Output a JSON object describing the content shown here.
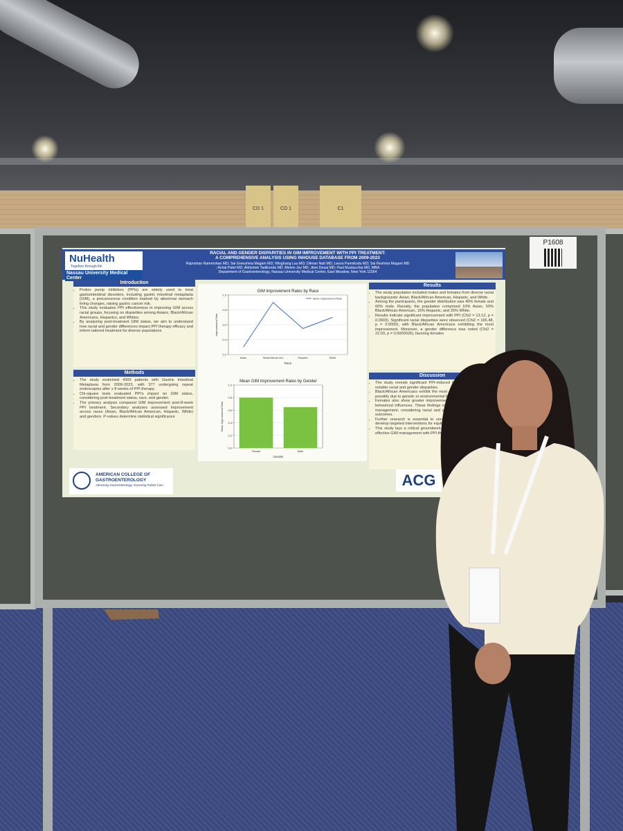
{
  "scene": {
    "signs": [
      "CD 1",
      "CD 1",
      "C1"
    ],
    "board_label": "P1608"
  },
  "poster": {
    "logo_name": "NuHealth",
    "logo_tagline": "Together through life",
    "institution": "Nassau University Medical Center",
    "title_lines": [
      "RACIAL AND GENDER DISPARITIES IN GIM IMPROVEMENT WITH PPI TREATMENT:",
      "A COMPREHENSIVE ANALYSIS USING INHOUSE DATABASE FROM 2009-2023"
    ],
    "author_lines": [
      "Rajmohan Rammohan MD; Sai Greeshma Magam MD; Winghang Lau MD; Dilman Natt MD; Leeza Pannikodu MD; Sai Reshma Magam MD",
      "; Achal Patel MD; Abhishek Tadikonda MD ;Melvin Joy MD; Jiten Desai MD; Paul Mustacchia MD, MBA",
      "Department of Gastroenterology, Nassau University Medical Center, East Meadow, New York 11554"
    ],
    "introduction": {
      "heading": "Introduction",
      "bullets": [
        "Proton pump inhibitors (PPIs) are widely used to treat gastrointestinal disorders, including gastric intestinal metaplasia (GIM), a precancerous condition marked by abnormal stomach lining changes, raising gastric cancer risk.",
        "This study evaluates PPI effectiveness in improving GIM across racial groups, focusing on disparities among Asians, Black/African Americans, Hispanics, and Whites.",
        "By analyzing post-treatment GIM status, we aim to understand how racial and gender differences impact PPI therapy efficacy and inform tailored treatment for diverse populations"
      ]
    },
    "methods": {
      "heading": "Methods",
      "bullets": [
        "The study examined 4300 patients with Gastric Intestinal Metaplasia from 2009-2023, with 377 undergoing repeat endoscopies after ≥ 8 weeks of PPI therapy.",
        "Chi-square tests evaluated PPI's impact on GIM status, considering post-treatment status, race, and gender.",
        "The primary analysis compared GIM improvement post-8-week PPI treatment. Secondary analyses assessed improvement across races (Asian, Black/African American, Hispanic, White) and genders. P-values determine statistical significance"
      ]
    },
    "results": {
      "heading": "Results",
      "bullets": [
        "The study population included males and females from diverse racial backgrounds: Asian, Black/African American, Hispanic, and White.",
        "Among the participants, the gender distribution was 40% female and 60% male. Racially, the population comprised 10% Asian, 50% Black/African American, 15% Hispanic, and 25% White.",
        "Results indicate significant improvement with PPI (Chi2 = 13.12, p = 0.0003). Significant racial disparities were observed (Chi2 = 165.48, p = 0.0000), with Black/African Americans exhibiting the most improvement. Moreover, a gender difference was noted (Chi2 = 22.03, p = 0.0000026), favoring females"
      ]
    },
    "discussion": {
      "heading": "Discussion",
      "bullets": [
        "The study reveals significant PPI-induced GIM improvement, with notable racial and gender disparities.",
        "Black/African Americans exhibit the most substantial enhancement, possibly due to genetic or environmental factors.",
        "Females also show greater improvement, suggesting hormonal or behavioral influences. These findings emphasize personalized GIM management, considering racial and gender variations for optimal outcomes.",
        "Further research is essential to unravel these mechanisms and develop targeted interventions for equitable healthcare benefits.",
        "This study lays a critical groundwork for reducing cancer risks via effective GIM management with PPI therapy."
      ]
    },
    "acg_name_lines": [
      "AMERICAN COLLEGE OF",
      "GASTROENTEROLOGY"
    ],
    "acg_tagline": "Advancing Gastroenterology, Improving Patient Care",
    "acg_badge": "ACG"
  },
  "chart_data": [
    {
      "type": "line",
      "title": "GIM Improvement Rates by Race",
      "x_label": "Race",
      "y_label": "Improvement Rate",
      "categories": [
        "Asian",
        "Black/African Am",
        "Hispanic",
        "White"
      ],
      "series": [
        {
          "name": "Mean Improvement Rate",
          "color": "#3b6fc4",
          "values": [
            0.3,
            0.9,
            0.55,
            0.7
          ]
        }
      ],
      "ylim": [
        0.2,
        1
      ],
      "yticks": [
        0.2,
        0.4,
        0.6,
        0.8,
        {
          "value": 1,
          "label": "1.0"
        }
      ],
      "grid": true,
      "legend": "upper right"
    },
    {
      "type": "bar",
      "title": "Mean GIM Improvement Rates by Gender",
      "x_label": "Gender",
      "y_label": "Mean Improvement Rate",
      "categories": [
        "Female",
        "Male"
      ],
      "values": [
        0.8,
        0.65
      ],
      "color": "#7cc242",
      "ylim": [
        0,
        1
      ],
      "yticks": [
        {
          "value": 0,
          "label": "0.0"
        },
        0.2,
        0.4,
        0.6,
        0.8,
        {
          "value": 1,
          "label": "1.0"
        }
      ],
      "grid": true
    }
  ]
}
